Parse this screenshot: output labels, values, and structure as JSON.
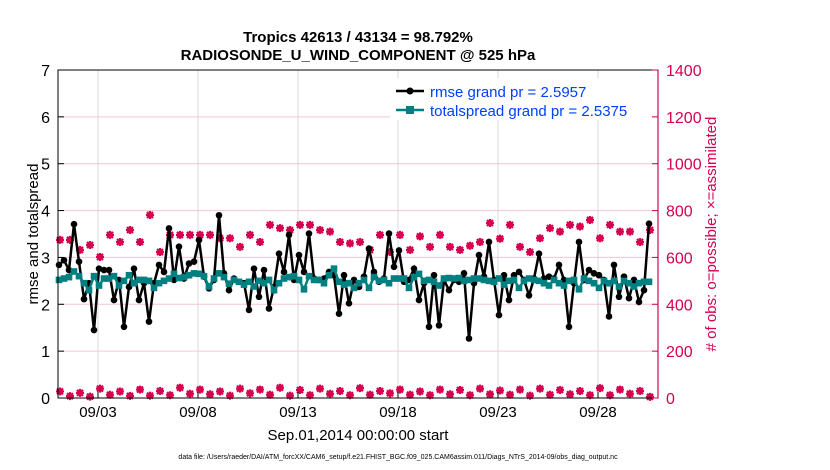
{
  "chart_data": {
    "type": "line",
    "title": [
      "Tropics 42613 / 43134 = 98.792%",
      "RADIOSONDE_U_WIND_COMPONENT @ 525 hPa"
    ],
    "xlabel": "Sep.01,2014 00:00:00 start",
    "ylabel": "rmse and totalspread",
    "ylabel_right": "# of obs: o=possible; ×=assimilated",
    "footnote": "data file: /Users/raeder/DAI/ATM_forcXX/CAM6_setup/f.e21.FHIST_BGC.f09_025.CAM6assim.011/Diags_NTrS_2014-09/obs_diag_output.nc",
    "xlim_days": [
      0,
      30
    ],
    "x_ticks": [
      {
        "day": 2,
        "label": "09/03"
      },
      {
        "day": 7,
        "label": "09/08"
      },
      {
        "day": 12,
        "label": "09/13"
      },
      {
        "day": 17,
        "label": "09/18"
      },
      {
        "day": 22,
        "label": "09/23"
      },
      {
        "day": 27,
        "label": "09/28"
      }
    ],
    "ylim": [
      0,
      7
    ],
    "y_ticks": [
      "0",
      "1",
      "2",
      "3",
      "4",
      "5",
      "6",
      "7"
    ],
    "ylim_right": [
      0,
      1400
    ],
    "y_ticks_right": [
      "0",
      "200",
      "400",
      "600",
      "800",
      "1000",
      "1200",
      "1400"
    ],
    "grid": true,
    "legend_placement": "top-right",
    "colors": {
      "rmse": "#000000",
      "spread": "#008080",
      "obs": "#d6004f",
      "legend_text": "#0040ff"
    },
    "series": [
      {
        "name": "rmse grand pr = 2.5957",
        "x_start_day": 0.05,
        "step_days": 0.25,
        "values": [
          2.84,
          2.94,
          2.73,
          3.71,
          2.91,
          2.11,
          2.45,
          1.45,
          2.76,
          2.73,
          2.73,
          2.09,
          2.52,
          1.52,
          2.37,
          2.76,
          2.09,
          2.45,
          1.63,
          2.45,
          2.84,
          2.69,
          3.62,
          2.52,
          3.23,
          2.55,
          2.87,
          2.91,
          3.37,
          2.59,
          2.34,
          2.52,
          3.9,
          2.66,
          2.3,
          2.55,
          2.48,
          2.45,
          1.88,
          2.76,
          2.16,
          2.73,
          1.91,
          2.37,
          3.08,
          2.69,
          3.48,
          2.52,
          3.05,
          2.69,
          3.51,
          2.55,
          2.52,
          2.55,
          2.69,
          2.62,
          1.8,
          2.62,
          2.02,
          2.52,
          2.37,
          2.59,
          3.19,
          2.69,
          2.48,
          2.55,
          3.51,
          2.8,
          3.15,
          2.48,
          2.52,
          2.76,
          2.09,
          2.45,
          1.52,
          2.62,
          1.55,
          2.52,
          2.3,
          2.52,
          2.48,
          2.66,
          1.27,
          2.45,
          3.05,
          2.59,
          3.33,
          2.52,
          1.77,
          2.62,
          2.09,
          2.62,
          2.69,
          2.52,
          2.19,
          2.55,
          3.08,
          2.55,
          2.59,
          2.55,
          2.84,
          2.52,
          1.52,
          2.45,
          3.33,
          2.52,
          2.73,
          2.66,
          2.62,
          2.52,
          1.74,
          2.84,
          2.16,
          2.59,
          2.13,
          2.52,
          2.05,
          2.3,
          3.72
        ]
      },
      {
        "name": "totalspread grand pr = 2.5375",
        "x_start_day": 0.05,
        "step_days": 0.25,
        "values": [
          2.52,
          2.55,
          2.58,
          2.7,
          2.6,
          2.45,
          2.3,
          2.6,
          2.4,
          2.55,
          2.55,
          2.6,
          2.4,
          2.5,
          2.62,
          2.45,
          2.52,
          2.52,
          2.5,
          2.35,
          2.45,
          2.5,
          2.55,
          2.65,
          2.56,
          2.58,
          2.62,
          2.66,
          2.65,
          2.6,
          2.38,
          2.55,
          2.66,
          2.58,
          2.44,
          2.52,
          2.48,
          2.42,
          2.48,
          2.38,
          2.5,
          2.45,
          2.52,
          2.3,
          2.45,
          2.55,
          2.58,
          2.6,
          2.52,
          2.32,
          2.6,
          2.52,
          2.52,
          2.45,
          2.62,
          2.76,
          2.48,
          2.42,
          2.45,
          2.35,
          2.45,
          2.52,
          2.35,
          2.58,
          2.5,
          2.52,
          2.45,
          2.55,
          2.55,
          2.55,
          2.35,
          2.58,
          2.65,
          2.5,
          2.52,
          2.48,
          2.4,
          2.55,
          2.56,
          2.55,
          2.56,
          2.5,
          2.52,
          2.55,
          2.55,
          2.52,
          2.5,
          2.48,
          2.55,
          2.42,
          2.5,
          2.52,
          2.35,
          2.5,
          2.55,
          2.52,
          2.5,
          2.45,
          2.4,
          2.52,
          2.45,
          2.4,
          2.5,
          2.52,
          2.32,
          2.55,
          2.5,
          2.45,
          2.35,
          2.5,
          2.45,
          2.5,
          2.38,
          2.5,
          2.45,
          2.38,
          2.45,
          2.48,
          2.48
        ]
      },
      {
        "name": "obs possible",
        "axis": "right",
        "x_start_day": 0.1,
        "step_days": 0.5,
        "values": [
          675,
          675,
          632,
          653,
          602,
          696,
          666,
          717,
          666,
          781,
          623,
          696,
          696,
          696,
          696,
          696,
          682,
          682,
          645,
          696,
          666,
          739,
          725,
          717,
          739,
          739,
          717,
          710,
          666,
          660,
          666,
          632,
          696,
          623,
          696,
          632,
          690,
          645,
          696,
          645,
          632,
          650,
          666,
          747,
          680,
          739,
          645,
          623,
          682,
          725,
          710,
          739,
          732,
          760,
          682,
          739,
          710,
          710,
          666,
          717
        ]
      },
      {
        "name": "obs assimilated",
        "axis": "right",
        "x_start_day": 0.1,
        "step_days": 0.5,
        "values": [
          28,
          8,
          22,
          6,
          40,
          14,
          28,
          9,
          36,
          10,
          30,
          12,
          44,
          18,
          36,
          16,
          28,
          10,
          40,
          20,
          36,
          14,
          44,
          10,
          34,
          12,
          40,
          18,
          30,
          12,
          42,
          14,
          30,
          20,
          36,
          14,
          28,
          12,
          36,
          16,
          34,
          12,
          40,
          16,
          32,
          14,
          36,
          10,
          40,
          14,
          34,
          16,
          30,
          12,
          42,
          12,
          36,
          18,
          30,
          5
        ]
      }
    ]
  }
}
